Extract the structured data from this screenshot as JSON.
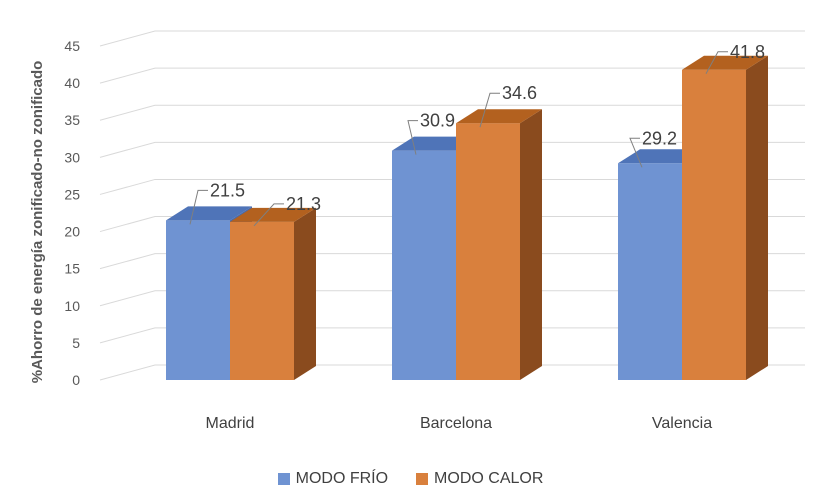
{
  "chart_data": {
    "type": "bar",
    "title": "",
    "xlabel": "",
    "ylabel": "%Ahorro de energía zonificado-no zonificado",
    "ylim": [
      0,
      45
    ],
    "yticks": [
      0,
      5,
      10,
      15,
      20,
      25,
      30,
      35,
      40,
      45
    ],
    "categories": [
      "Madrid",
      "Barcelona",
      "Valencia"
    ],
    "series": [
      {
        "name": "MODO FRÍO",
        "values": [
          21.5,
          30.9,
          29.2
        ],
        "color": "#6f93d2"
      },
      {
        "name": "MODO CALOR",
        "values": [
          21.3,
          34.6,
          41.8
        ],
        "color": "#d9803d"
      }
    ],
    "grid": true,
    "legend": "bottom",
    "style": "3d-clustered-column"
  },
  "legend": {
    "items": [
      {
        "label": "MODO FRÍO",
        "color": "#6f93d2"
      },
      {
        "label": "MODO CALOR",
        "color": "#d9803d"
      }
    ]
  }
}
